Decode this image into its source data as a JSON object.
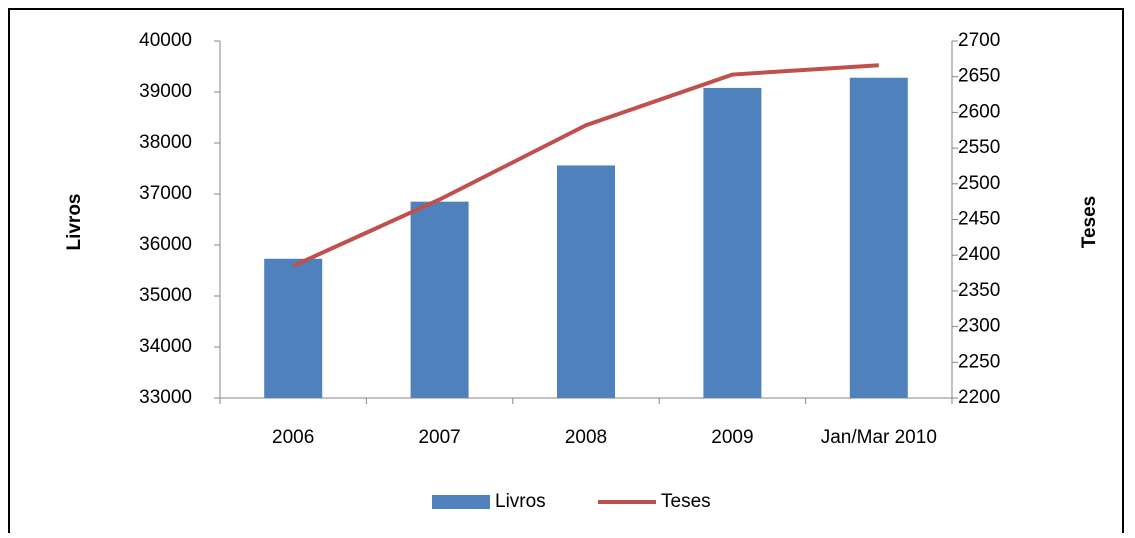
{
  "chart_data": {
    "type": "bar",
    "categories": [
      "2006",
      "2007",
      "2008",
      "2009",
      "Jan/Mar 2010"
    ],
    "series": [
      {
        "name": "Livros",
        "color": "#4f81bd",
        "type": "bar",
        "values": [
          35730,
          36850,
          37560,
          39080,
          39280
        ]
      },
      {
        "name": "Teses",
        "color": "#c0504d",
        "type": "line",
        "axis": "y2",
        "values": [
          2385,
          2478,
          2582,
          2653,
          2666
        ]
      }
    ],
    "y_label": "Livros",
    "y2_label": "Teses",
    "ylim": [
      33000,
      40000
    ],
    "yticks": [
      33000,
      34000,
      35000,
      36000,
      37000,
      38000,
      39000,
      40000
    ],
    "y2lim": [
      2200,
      2700
    ],
    "y2ticks": [
      2200,
      2250,
      2300,
      2350,
      2400,
      2450,
      2500,
      2550,
      2600,
      2650,
      2700
    ],
    "legend": "bottom"
  }
}
